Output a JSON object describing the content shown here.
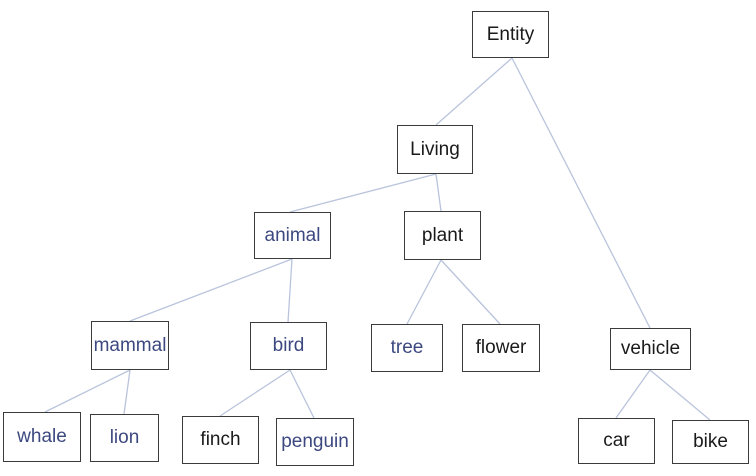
{
  "diagram": {
    "type": "tree",
    "colors": {
      "edge": "#b9c4dc",
      "node_border": "#3b3b3b",
      "text_dark": "#1a1a1a",
      "text_blue": "#3c4880"
    },
    "nodes": {
      "entity": "Entity",
      "living": "Living",
      "animal": "animal",
      "plant": "plant",
      "mammal": "mammal",
      "bird": "bird",
      "tree": "tree",
      "flower": "flower",
      "vehicle": "vehicle",
      "whale": "whale",
      "lion": "lion",
      "finch": "finch",
      "penguin": "penguin",
      "car": "car",
      "bike": "bike"
    },
    "edges": [
      [
        "entity",
        "living"
      ],
      [
        "entity",
        "vehicle"
      ],
      [
        "living",
        "animal"
      ],
      [
        "living",
        "plant"
      ],
      [
        "animal",
        "mammal"
      ],
      [
        "animal",
        "bird"
      ],
      [
        "plant",
        "tree"
      ],
      [
        "plant",
        "flower"
      ],
      [
        "mammal",
        "whale"
      ],
      [
        "mammal",
        "lion"
      ],
      [
        "bird",
        "finch"
      ],
      [
        "bird",
        "penguin"
      ],
      [
        "vehicle",
        "car"
      ],
      [
        "vehicle",
        "bike"
      ]
    ]
  }
}
